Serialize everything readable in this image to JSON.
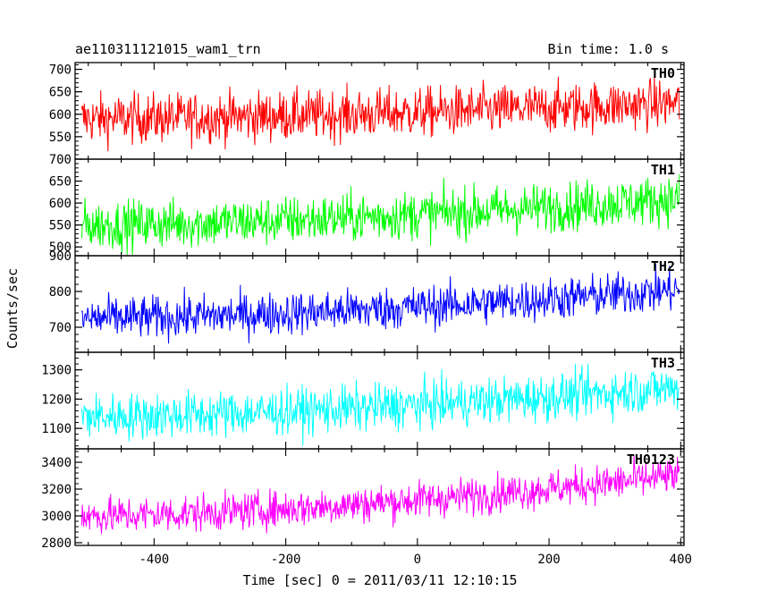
{
  "header": {
    "title": "ae110311121015_wam1_trn",
    "bin_time": "Bin time: 1.0 s"
  },
  "ylabel": "Counts/sec",
  "xlabel": "Time [sec] 0 = 2011/03/11 12:10:15",
  "chart_data": {
    "type": "line",
    "xlim": [
      -520,
      405
    ],
    "x_step": 1.0,
    "x_start": -510,
    "x_end": 398,
    "xticks": [
      -400,
      -200,
      0,
      200,
      400
    ],
    "grid": false,
    "panels": [
      {
        "name": "TH0",
        "color": "#ff0000",
        "ylim": [
          500,
          715
        ],
        "yticks": [
          550,
          600,
          650,
          700
        ],
        "mean_start": 590,
        "mean_end": 625,
        "noise": 28
      },
      {
        "name": "TH1",
        "color": "#00ff00",
        "ylim": [
          480,
          700
        ],
        "yticks": [
          500,
          550,
          600,
          650,
          700
        ],
        "mean_start": 550,
        "mean_end": 610,
        "noise": 28
      },
      {
        "name": "TH2",
        "color": "#0000ff",
        "ylim": [
          630,
          900
        ],
        "yticks": [
          700,
          800,
          900
        ],
        "mean_start": 725,
        "mean_end": 805,
        "noise": 30
      },
      {
        "name": "TH3",
        "color": "#00ffff",
        "ylim": [
          1030,
          1360
        ],
        "yticks": [
          1100,
          1200,
          1300
        ],
        "mean_start": 1140,
        "mean_end": 1240,
        "noise": 40
      },
      {
        "name": "TH0123",
        "color": "#ff00ff",
        "ylim": [
          2780,
          3500
        ],
        "yticks": [
          2800,
          3000,
          3200,
          3400
        ],
        "mean_start": 3000,
        "mean_end": 3300,
        "noise": 70
      }
    ]
  }
}
